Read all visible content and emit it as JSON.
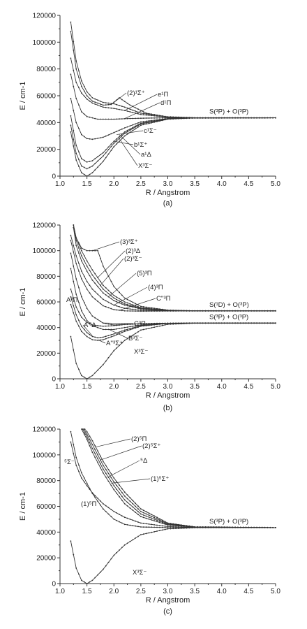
{
  "chart_data": [
    {
      "type": "line",
      "panel": "(a)",
      "xlabel": "R / Angstrom",
      "ylabel": "E / cm-1",
      "xlim": [
        1.0,
        5.0
      ],
      "ylim": [
        0,
        120000
      ],
      "xticks": [
        "1.0",
        "1.5",
        "2.0",
        "2.5",
        "3.0",
        "3.5",
        "4.0",
        "4.5",
        "5.0"
      ],
      "yticks": [
        "0",
        "20000",
        "40000",
        "60000",
        "80000",
        "100000",
        "120000"
      ],
      "asymptotes": [
        {
          "label": "S(³P) + O(³P)",
          "energy": 43500
        }
      ],
      "series": [
        {
          "name": "X³Σ⁻",
          "x": [
            1.2,
            1.3,
            1.4,
            1.5,
            1.6,
            1.8,
            2.0,
            2.2,
            2.5,
            3.0,
            3.5,
            4.0,
            5.0
          ],
          "y": [
            33000,
            12000,
            2500,
            0,
            2500,
            11000,
            22000,
            30000,
            38000,
            42500,
            43400,
            43500,
            43500
          ]
        },
        {
          "name": "a¹Δ",
          "x": [
            1.2,
            1.3,
            1.4,
            1.5,
            1.6,
            1.8,
            2.0,
            2.2,
            2.5,
            3.0,
            3.5,
            5.0
          ],
          "y": [
            38000,
            17000,
            7500,
            5500,
            7500,
            15000,
            24500,
            32000,
            39000,
            42800,
            43400,
            43500
          ]
        },
        {
          "name": "b¹Σ⁺",
          "x": [
            1.2,
            1.3,
            1.4,
            1.5,
            1.6,
            1.8,
            2.0,
            2.2,
            2.5,
            3.0,
            3.5,
            5.0
          ],
          "y": [
            45000,
            23000,
            13000,
            10500,
            11500,
            17500,
            26000,
            33000,
            39500,
            42900,
            43400,
            43500
          ]
        },
        {
          "name": "c¹Σ⁻",
          "x": [
            1.2,
            1.3,
            1.4,
            1.5,
            1.6,
            1.8,
            2.0,
            2.2,
            2.5,
            3.0,
            3.5,
            5.0
          ],
          "y": [
            58000,
            40000,
            31000,
            28000,
            27500,
            29000,
            32500,
            36000,
            40500,
            43000,
            43400,
            43500
          ]
        },
        {
          "name": "d¹Π",
          "x": [
            1.2,
            1.3,
            1.4,
            1.5,
            1.7,
            2.0,
            2.3,
            2.6,
            3.0,
            3.5,
            5.0
          ],
          "y": [
            76000,
            58000,
            48000,
            44500,
            42500,
            42500,
            43000,
            43300,
            43500,
            43500,
            43500
          ]
        },
        {
          "name": "e¹Π",
          "x": [
            1.2,
            1.3,
            1.4,
            1.5,
            1.6,
            1.8,
            2.0,
            2.2,
            2.5,
            3.0,
            3.5,
            5.0
          ],
          "y": [
            88000,
            70000,
            62000,
            57500,
            54500,
            51500,
            50500,
            49000,
            46000,
            44000,
            43500,
            43500
          ]
        },
        {
          "name": "(2)¹Σ⁺",
          "x": [
            1.2,
            1.3,
            1.4,
            1.5,
            1.6,
            1.8,
            1.95,
            2.1,
            2.3,
            2.6,
            3.0,
            3.5,
            5.0
          ],
          "y": [
            108000,
            80000,
            67000,
            60000,
            56000,
            53000,
            53500,
            58500,
            53000,
            47000,
            44200,
            43600,
            43500
          ]
        },
        {
          "name": "",
          "x": [
            1.2,
            1.3,
            1.4,
            1.5,
            1.6,
            1.8,
            2.0,
            2.2,
            2.5,
            3.0,
            3.5,
            5.0
          ],
          "y": [
            115000,
            86000,
            71000,
            63000,
            58500,
            55000,
            54000,
            51500,
            47000,
            44300,
            43600,
            43500
          ]
        }
      ]
    },
    {
      "type": "line",
      "panel": "(b)",
      "xlabel": "R / Angstrom",
      "ylabel": "E / cm-1",
      "xlim": [
        1.0,
        5.0
      ],
      "ylim": [
        0,
        120000
      ],
      "xticks": [
        "1.0",
        "1.5",
        "2.0",
        "2.5",
        "3.0",
        "3.5",
        "4.0",
        "4.5",
        "5.0"
      ],
      "yticks": [
        "0",
        "20000",
        "40000",
        "60000",
        "80000",
        "100000",
        "120000"
      ],
      "asymptotes": [
        {
          "label": "S(¹D) + O(³P)",
          "energy": 53000
        },
        {
          "label": "S(³P) + O(³P)",
          "energy": 43500
        }
      ],
      "series": [
        {
          "name": "X³Σ⁻",
          "x": [
            1.2,
            1.3,
            1.4,
            1.5,
            1.6,
            1.8,
            2.0,
            2.2,
            2.5,
            3.0,
            3.5,
            4.0,
            5.0
          ],
          "y": [
            33000,
            12000,
            2500,
            0,
            2500,
            11000,
            22000,
            30000,
            38000,
            42500,
            43400,
            43500,
            43500
          ]
        },
        {
          "name": "A''³Σ⁺",
          "x": [
            1.2,
            1.3,
            1.4,
            1.5,
            1.6,
            1.7,
            1.8,
            2.0,
            2.2,
            2.5,
            3.0,
            3.5,
            5.0
          ],
          "y": [
            58000,
            45000,
            37000,
            33000,
            30500,
            30000,
            30500,
            33500,
            37000,
            41000,
            43200,
            43500,
            43500
          ]
        },
        {
          "name": "A'³Δ",
          "x": [
            1.2,
            1.3,
            1.4,
            1.5,
            1.6,
            1.7,
            1.8,
            2.0,
            2.2,
            2.5,
            3.0,
            3.5,
            5.0
          ],
          "y": [
            64000,
            50000,
            41000,
            36000,
            33000,
            32000,
            32500,
            35000,
            38000,
            41500,
            43300,
            43500,
            43500
          ]
        },
        {
          "name": "B³Σ⁻",
          "x": [
            1.2,
            1.3,
            1.4,
            1.5,
            1.6,
            1.8,
            2.0,
            2.2,
            2.5,
            3.0,
            3.5,
            5.0
          ],
          "y": [
            86000,
            66000,
            53000,
            45500,
            41500,
            38500,
            38500,
            40000,
            42000,
            43300,
            43500,
            43500
          ]
        },
        {
          "name": "A³Π",
          "x": [
            1.2,
            1.3,
            1.4,
            1.5,
            1.6,
            1.8,
            2.0,
            2.2,
            2.5,
            3.0,
            3.5,
            5.0
          ],
          "y": [
            70000,
            56000,
            48000,
            44000,
            42000,
            41000,
            41500,
            42300,
            43000,
            43400,
            43500,
            43500
          ]
        },
        {
          "name": "C³Π",
          "x": [
            1.2,
            1.3,
            1.4,
            1.5,
            1.6,
            1.8,
            2.0,
            2.2,
            2.5,
            3.0,
            3.5,
            5.0
          ],
          "y": [
            98000,
            78000,
            64000,
            55000,
            49000,
            43500,
            42000,
            42500,
            43000,
            43400,
            43500,
            43500
          ]
        },
        {
          "name": "C''³Π",
          "x": [
            1.2,
            1.3,
            1.4,
            1.5,
            1.6,
            1.8,
            2.0,
            2.2,
            2.5,
            3.0,
            3.5,
            5.0
          ],
          "y": [
            108000,
            90000,
            78000,
            70000,
            64000,
            57000,
            54000,
            53000,
            52800,
            52900,
            53000,
            53000
          ]
        },
        {
          "name": "(4)³Π",
          "x": [
            1.2,
            1.3,
            1.4,
            1.5,
            1.6,
            1.8,
            2.0,
            2.2,
            2.5,
            3.0,
            3.5,
            5.0
          ],
          "y": [
            112000,
            96000,
            84000,
            76000,
            70000,
            62000,
            57500,
            55000,
            53500,
            53000,
            53000,
            53000
          ]
        },
        {
          "name": "(5)³Π",
          "x": [
            1.25,
            1.3,
            1.4,
            1.5,
            1.6,
            1.8,
            2.0,
            2.2,
            2.5,
            3.0,
            3.5,
            5.0
          ],
          "y": [
            118000,
            104000,
            92000,
            84000,
            77000,
            67000,
            61000,
            57500,
            54500,
            53200,
            53000,
            53000
          ]
        },
        {
          "name": "(2)³Σ⁻",
          "x": [
            1.25,
            1.3,
            1.4,
            1.5,
            1.6,
            1.8,
            2.0,
            2.2,
            2.5,
            3.0,
            3.5,
            5.0
          ],
          "y": [
            120000,
            108000,
            96000,
            88000,
            81000,
            70000,
            63000,
            58500,
            55000,
            53300,
            53000,
            53000
          ]
        },
        {
          "name": "(2)³Δ",
          "x": [
            1.25,
            1.3,
            1.4,
            1.5,
            1.6,
            1.8,
            2.0,
            2.2,
            2.5,
            3.0,
            3.5,
            5.0
          ],
          "y": [
            120000,
            110000,
            100000,
            92000,
            85000,
            73000,
            65000,
            60000,
            55500,
            53400,
            53000,
            53000
          ]
        },
        {
          "name": "(3)³Σ⁺",
          "x": [
            1.25,
            1.3,
            1.4,
            1.5,
            1.6,
            1.7,
            1.8,
            2.0,
            2.2,
            2.5,
            3.0,
            3.5,
            5.0
          ],
          "y": [
            120000,
            110000,
            102000,
            100000,
            100000,
            100000,
            88000,
            72000,
            63000,
            56500,
            53600,
            53100,
            53000
          ]
        }
      ]
    },
    {
      "type": "line",
      "panel": "(c)",
      "xlabel": "R / Angstrom",
      "ylabel": "E / cm-1",
      "xlim": [
        1.0,
        5.0
      ],
      "ylim": [
        0,
        120000
      ],
      "xticks": [
        "1.0",
        "1.5",
        "2.0",
        "2.5",
        "3.0",
        "3.5",
        "4.0",
        "4.5",
        "5.0"
      ],
      "yticks": [
        "0",
        "20000",
        "40000",
        "60000",
        "80000",
        "100000",
        "120000"
      ],
      "asymptotes": [
        {
          "label": "S(³P) + O(³P)",
          "energy": 43500
        }
      ],
      "series": [
        {
          "name": "X³Σ⁻",
          "x": [
            1.2,
            1.3,
            1.4,
            1.5,
            1.6,
            1.8,
            2.0,
            2.2,
            2.5,
            3.0,
            3.5,
            4.0,
            5.0
          ],
          "y": [
            33000,
            12000,
            2500,
            0,
            2500,
            11000,
            22000,
            30000,
            38000,
            42500,
            43400,
            43500,
            43500
          ]
        },
        {
          "name": "(1)⁵Π",
          "x": [
            1.2,
            1.3,
            1.4,
            1.5,
            1.6,
            1.8,
            2.0,
            2.2,
            2.5,
            3.0,
            3.5,
            5.0
          ],
          "y": [
            118000,
            98000,
            86000,
            78000,
            70000,
            58000,
            50000,
            46000,
            44000,
            43500,
            43500,
            43500
          ]
        },
        {
          "name": "⁵Σ⁻",
          "x": [
            1.2,
            1.3,
            1.4,
            1.5,
            1.6,
            1.8,
            2.0,
            2.2,
            2.5,
            3.0,
            3.5,
            5.0
          ],
          "y": [
            110000,
            92000,
            82000,
            76000,
            70500,
            62000,
            56000,
            51500,
            47000,
            44300,
            43600,
            43500
          ]
        },
        {
          "name": "(1)⁵Σ⁺",
          "x": [
            1.4,
            1.5,
            1.6,
            1.8,
            2.0,
            2.2,
            2.5,
            3.0,
            3.5,
            5.0
          ],
          "y": [
            120000,
            112000,
            102000,
            86000,
            73000,
            62000,
            52000,
            45500,
            43800,
            43500
          ]
        },
        {
          "name": "⁵Δ",
          "x": [
            1.42,
            1.5,
            1.6,
            1.8,
            2.0,
            2.2,
            2.5,
            3.0,
            3.5,
            5.0
          ],
          "y": [
            120000,
            114000,
            105000,
            89000,
            76000,
            65000,
            54000,
            46000,
            44000,
            43500
          ]
        },
        {
          "name": "(2)⁵Σ⁺",
          "x": [
            1.44,
            1.5,
            1.6,
            1.8,
            2.0,
            2.2,
            2.5,
            3.0,
            3.5,
            5.0
          ],
          "y": [
            120000,
            116000,
            108000,
            92000,
            79000,
            68000,
            56000,
            46500,
            44000,
            43500
          ]
        },
        {
          "name": "(2)⁵Π",
          "x": [
            1.46,
            1.5,
            1.6,
            1.8,
            2.0,
            2.2,
            2.5,
            3.0,
            3.5,
            5.0
          ],
          "y": [
            120000,
            118000,
            111000,
            95000,
            82000,
            71000,
            58000,
            47000,
            44100,
            43500
          ]
        }
      ]
    }
  ]
}
